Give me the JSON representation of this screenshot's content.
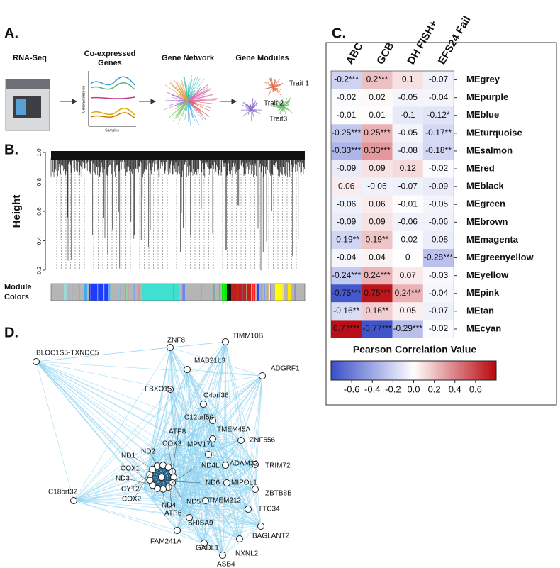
{
  "panel_a": {
    "label": "A.",
    "steps": [
      "RNA-Seq",
      "Co-expressed",
      "Genes",
      "Gene Network",
      "Gene Modules"
    ],
    "axis_y": "Gene Expression",
    "axis_x": "Samples",
    "traits": [
      "Trait 1",
      "Trait 2",
      "Trait3"
    ]
  },
  "panel_b": {
    "label": "B.",
    "ylabel": "Height",
    "ylim": [
      0.2,
      1.0
    ],
    "yticks": [
      0.2,
      0.4,
      0.6,
      0.8,
      {
        "value": 1.0,
        "label": "1.0"
      }
    ],
    "colors_label": [
      "Module",
      "Colors"
    ]
  },
  "chart_data": {
    "type": "heatmap",
    "label": "C.",
    "title": "Pearson Correlation Value",
    "columns": [
      "ABC",
      "GCB",
      "DH FISH+",
      "EFS24 Fail"
    ],
    "rows": [
      "MEgrey",
      "MEpurple",
      "MEblue",
      "MEturquoise",
      "MEsalmon",
      "MEred",
      "MEblack",
      "MEgreen",
      "MEbrown",
      "MEmagenta",
      "MEgreenyellow",
      "MEyellow",
      "MEpink",
      "MEtan",
      "MEcyan"
    ],
    "values": [
      [
        -0.2,
        0.2,
        0.1,
        -0.07
      ],
      [
        -0.02,
        0.02,
        -0.05,
        -0.04
      ],
      [
        -0.01,
        0.01,
        -0.1,
        -0.12
      ],
      [
        -0.25,
        0.25,
        -0.05,
        -0.17
      ],
      [
        -0.33,
        0.33,
        -0.08,
        -0.18
      ],
      [
        -0.09,
        0.09,
        0.12,
        -0.02
      ],
      [
        0.06,
        -0.06,
        -0.07,
        -0.09
      ],
      [
        -0.06,
        0.06,
        -0.01,
        -0.05
      ],
      [
        -0.09,
        0.09,
        -0.06,
        -0.06
      ],
      [
        -0.19,
        0.19,
        -0.02,
        -0.08
      ],
      [
        -0.04,
        0.04,
        0,
        -0.28
      ],
      [
        -0.24,
        0.24,
        0.07,
        -0.03
      ],
      [
        -0.75,
        0.75,
        0.24,
        -0.04
      ],
      [
        -0.16,
        0.16,
        0.05,
        -0.07
      ],
      [
        0.77,
        -0.77,
        -0.29,
        -0.02
      ]
    ],
    "value_labels": [
      [
        "-0.2***",
        "0.2***",
        "0.1",
        "-0.07"
      ],
      [
        "-0.02",
        "0.02",
        "-0.05",
        "-0.04"
      ],
      [
        "-0.01",
        "0.01",
        "-0.1",
        "-0.12*"
      ],
      [
        "-0.25***",
        "0.25***",
        "-0.05",
        "-0.17**"
      ],
      [
        "-0.33***",
        "0.33***",
        "-0.08",
        "-0.18**"
      ],
      [
        "-0.09",
        "0.09",
        "0.12",
        "-0.02"
      ],
      [
        "0.06",
        "-0.06",
        "-0.07",
        "-0.09"
      ],
      [
        "-0.06",
        "0.06",
        "-0.01",
        "-0.05"
      ],
      [
        "-0.09",
        "0.09",
        "-0.06",
        "-0.06"
      ],
      [
        "-0.19**",
        "0.19**",
        "-0.02",
        "-0.08"
      ],
      [
        "-0.04",
        "0.04",
        "0",
        "-0.28***"
      ],
      [
        "-0.24***",
        "0.24***",
        "0.07",
        "-0.03"
      ],
      [
        "-0.75***",
        "0.75***",
        "0.24***",
        "-0.04"
      ],
      [
        "-0.16**",
        "0.16**",
        "0.05",
        "-0.07"
      ],
      [
        "0.77***",
        "-0.77***",
        "-0.29***",
        "-0.02"
      ]
    ],
    "clim": [
      -0.8,
      0.8
    ],
    "colors": [
      "#3a4ec9",
      "#ffffff",
      "#b8060e"
    ],
    "colorbar_ticks": [
      -0.6,
      -0.4,
      -0.2,
      {
        "value": 0,
        "label": "0.0"
      },
      0.2,
      0.4,
      0.6
    ]
  },
  "panel_d": {
    "label": "D.",
    "nodes": [
      "TIMM10B",
      "BLOC1S5-TXNDC5",
      "ZNF8",
      "MAB21L3",
      "ADGRF1",
      "FBXO15",
      "C4orf36",
      "C12orf50",
      "ATP8",
      "TMEM45A",
      "ZNF556",
      "COX3",
      "MPV17L",
      "ND1",
      "ND2",
      "TRIM72",
      "ADAM32",
      "ND4L",
      "COX1",
      "ND3",
      "ND6",
      "MIPOL1",
      "ZBTB8B",
      "CYT2",
      "C18orf32",
      "COX2",
      "ND4",
      "ND5",
      "TMEM212",
      "ATP6",
      "SHISA9",
      "TTC34",
      "FAM241A",
      "BAGLANT2",
      "GADL1",
      "NXNL2",
      "ASB4"
    ]
  }
}
